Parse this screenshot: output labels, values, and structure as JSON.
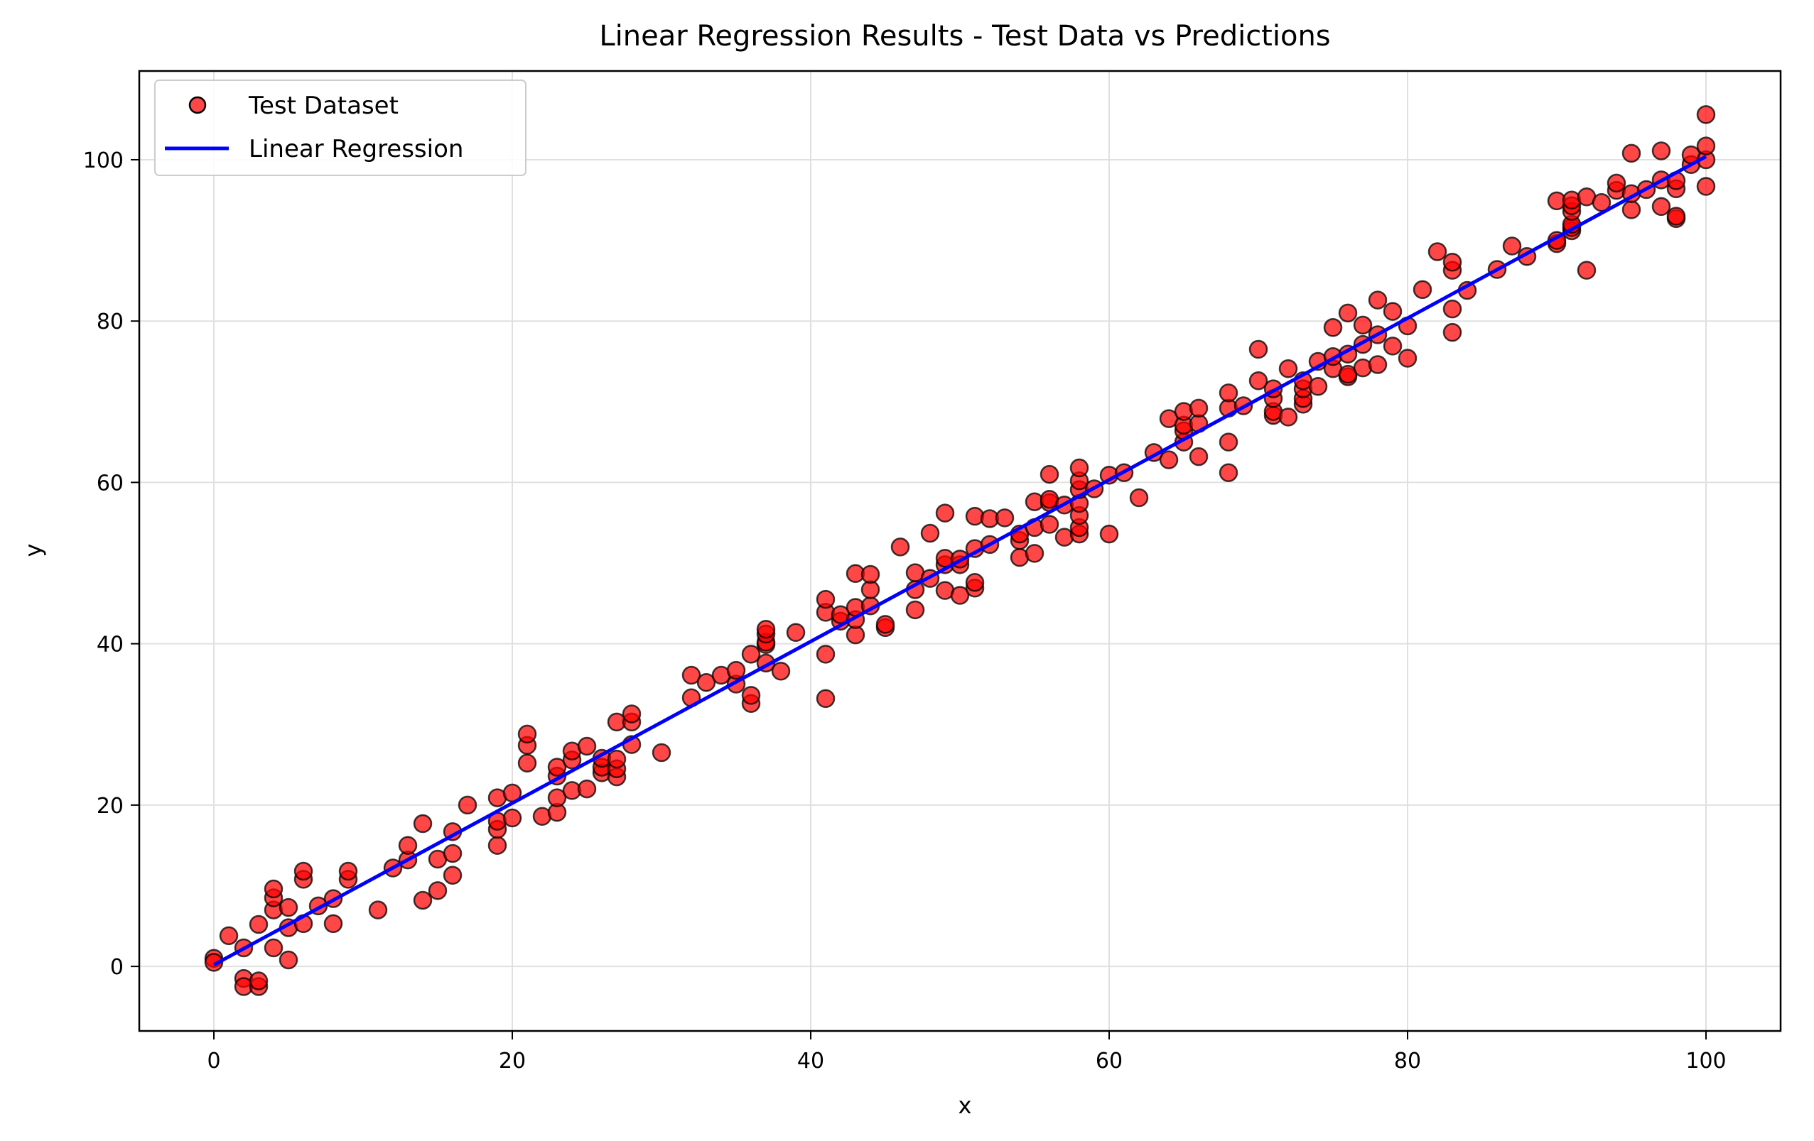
{
  "chart_data": {
    "type": "scatter",
    "title": "Linear Regression Results - Test Data vs Predictions",
    "xlabel": "x",
    "ylabel": "y",
    "xlim": [
      -5,
      105
    ],
    "ylim": [
      -8,
      111
    ],
    "xticks": [
      0,
      20,
      40,
      60,
      80,
      100
    ],
    "yticks": [
      0,
      20,
      40,
      60,
      80,
      100
    ],
    "grid": true,
    "legend_position": "upper-left",
    "colors": {
      "points_fill": "#ff0000",
      "points_edge": "#000000",
      "regression_line": "#0000ff",
      "grid": "#e0e0e0"
    },
    "series": [
      {
        "name": "Test Dataset",
        "kind": "scatter",
        "points": [
          [
            0,
            1.0
          ],
          [
            0,
            0.5
          ],
          [
            1,
            3.8
          ],
          [
            2,
            2.3
          ],
          [
            2,
            -1.5
          ],
          [
            2,
            -2.5
          ],
          [
            3,
            -2.5
          ],
          [
            3,
            -1.8
          ],
          [
            3,
            5.2
          ],
          [
            4,
            2.3
          ],
          [
            4,
            7.0
          ],
          [
            4,
            8.5
          ],
          [
            4,
            9.6
          ],
          [
            5,
            0.8
          ],
          [
            5,
            4.8
          ],
          [
            5,
            7.3
          ],
          [
            6,
            5.3
          ],
          [
            6,
            10.8
          ],
          [
            6,
            11.8
          ],
          [
            7,
            7.5
          ],
          [
            8,
            5.3
          ],
          [
            8,
            8.4
          ],
          [
            9,
            10.8
          ],
          [
            9,
            11.8
          ],
          [
            11,
            7.0
          ],
          [
            12,
            12.2
          ],
          [
            13,
            13.2
          ],
          [
            13,
            15.0
          ],
          [
            14,
            8.2
          ],
          [
            14,
            17.7
          ],
          [
            15,
            9.4
          ],
          [
            15,
            13.3
          ],
          [
            16,
            11.3
          ],
          [
            16,
            14.0
          ],
          [
            16,
            16.7
          ],
          [
            17,
            20.0
          ],
          [
            19,
            15.0
          ],
          [
            19,
            17.0
          ],
          [
            19,
            18.0
          ],
          [
            19,
            20.9
          ],
          [
            20,
            18.4
          ],
          [
            20,
            21.5
          ],
          [
            21,
            25.2
          ],
          [
            21,
            27.4
          ],
          [
            21,
            28.8
          ],
          [
            22,
            18.6
          ],
          [
            23,
            19.1
          ],
          [
            23,
            20.9
          ],
          [
            23,
            23.6
          ],
          [
            23,
            24.7
          ],
          [
            24,
            21.8
          ],
          [
            24,
            25.6
          ],
          [
            24,
            26.7
          ],
          [
            25,
            22.0
          ],
          [
            25,
            27.3
          ],
          [
            26,
            24.0
          ],
          [
            26,
            24.7
          ],
          [
            26,
            25.8
          ],
          [
            27,
            23.5
          ],
          [
            27,
            24.5
          ],
          [
            27,
            25.7
          ],
          [
            27,
            30.3
          ],
          [
            28,
            27.5
          ],
          [
            28,
            30.3
          ],
          [
            28,
            31.3
          ],
          [
            30,
            26.5
          ],
          [
            32,
            33.3
          ],
          [
            32,
            36.1
          ],
          [
            33,
            35.2
          ],
          [
            34,
            36.1
          ],
          [
            35,
            35.0
          ],
          [
            35,
            36.7
          ],
          [
            36,
            32.6
          ],
          [
            36,
            33.6
          ],
          [
            36,
            38.7
          ],
          [
            37,
            37.6
          ],
          [
            37,
            39.9
          ],
          [
            37,
            40.2
          ],
          [
            37,
            41.2
          ],
          [
            37,
            41.8
          ],
          [
            38,
            36.6
          ],
          [
            39,
            41.4
          ],
          [
            41,
            33.2
          ],
          [
            41,
            38.7
          ],
          [
            41,
            43.9
          ],
          [
            41,
            45.5
          ],
          [
            42,
            42.8
          ],
          [
            42,
            43.6
          ],
          [
            43,
            41.1
          ],
          [
            43,
            43.0
          ],
          [
            43,
            44.5
          ],
          [
            43,
            48.7
          ],
          [
            44,
            44.7
          ],
          [
            44,
            46.7
          ],
          [
            44,
            48.6
          ],
          [
            45,
            42.0
          ],
          [
            45,
            42.4
          ],
          [
            46,
            52.0
          ],
          [
            47,
            44.2
          ],
          [
            47,
            46.7
          ],
          [
            47,
            48.8
          ],
          [
            48,
            48.1
          ],
          [
            48,
            53.7
          ],
          [
            49,
            46.6
          ],
          [
            49,
            49.8
          ],
          [
            49,
            50.6
          ],
          [
            49,
            56.2
          ],
          [
            50,
            46.0
          ],
          [
            50,
            49.8
          ],
          [
            50,
            50.5
          ],
          [
            51,
            46.9
          ],
          [
            51,
            47.6
          ],
          [
            51,
            51.8
          ],
          [
            51,
            55.8
          ],
          [
            52,
            52.3
          ],
          [
            52,
            55.5
          ],
          [
            53,
            55.6
          ],
          [
            54,
            50.7
          ],
          [
            54,
            52.8
          ],
          [
            54,
            53.6
          ],
          [
            55,
            51.2
          ],
          [
            55,
            54.4
          ],
          [
            55,
            57.6
          ],
          [
            56,
            54.8
          ],
          [
            56,
            57.5
          ],
          [
            56,
            57.9
          ],
          [
            56,
            61.0
          ],
          [
            57,
            53.2
          ],
          [
            57,
            57.2
          ],
          [
            58,
            53.6
          ],
          [
            58,
            54.4
          ],
          [
            58,
            55.9
          ],
          [
            58,
            57.4
          ],
          [
            58,
            59.1
          ],
          [
            58,
            60.2
          ],
          [
            58,
            61.8
          ],
          [
            59,
            59.2
          ],
          [
            60,
            53.6
          ],
          [
            60,
            60.9
          ],
          [
            61,
            61.2
          ],
          [
            62,
            58.1
          ],
          [
            63,
            63.7
          ],
          [
            64,
            62.8
          ],
          [
            64,
            67.9
          ],
          [
            65,
            65.0
          ],
          [
            65,
            66.4
          ],
          [
            65,
            67.1
          ],
          [
            65,
            68.8
          ],
          [
            66,
            63.2
          ],
          [
            66,
            67.3
          ],
          [
            66,
            69.2
          ],
          [
            68,
            61.2
          ],
          [
            68,
            65.0
          ],
          [
            68,
            69.2
          ],
          [
            68,
            71.1
          ],
          [
            69,
            69.5
          ],
          [
            70,
            72.6
          ],
          [
            70,
            76.5
          ],
          [
            71,
            68.3
          ],
          [
            71,
            68.8
          ],
          [
            71,
            70.4
          ],
          [
            71,
            71.6
          ],
          [
            72,
            68.1
          ],
          [
            72,
            74.1
          ],
          [
            73,
            69.7
          ],
          [
            73,
            70.4
          ],
          [
            73,
            71.6
          ],
          [
            73,
            72.6
          ],
          [
            74,
            71.9
          ],
          [
            74,
            75.0
          ],
          [
            75,
            74.1
          ],
          [
            75,
            75.6
          ],
          [
            75,
            79.2
          ],
          [
            76,
            73.1
          ],
          [
            76,
            73.4
          ],
          [
            76,
            75.9
          ],
          [
            76,
            81.0
          ],
          [
            77,
            74.2
          ],
          [
            77,
            77.1
          ],
          [
            77,
            79.5
          ],
          [
            78,
            74.6
          ],
          [
            78,
            78.3
          ],
          [
            78,
            82.6
          ],
          [
            79,
            76.9
          ],
          [
            79,
            81.2
          ],
          [
            80,
            75.4
          ],
          [
            80,
            79.4
          ],
          [
            81,
            83.9
          ],
          [
            82,
            88.6
          ],
          [
            83,
            78.6
          ],
          [
            83,
            81.5
          ],
          [
            83,
            86.3
          ],
          [
            83,
            87.3
          ],
          [
            84,
            83.8
          ],
          [
            86,
            86.4
          ],
          [
            87,
            89.3
          ],
          [
            88,
            88.0
          ],
          [
            90,
            89.6
          ],
          [
            90,
            90.0
          ],
          [
            90,
            94.9
          ],
          [
            91,
            91.2
          ],
          [
            91,
            91.6
          ],
          [
            91,
            92.0
          ],
          [
            91,
            93.6
          ],
          [
            91,
            94.3
          ],
          [
            91,
            95.0
          ],
          [
            92,
            86.3
          ],
          [
            92,
            95.4
          ],
          [
            93,
            94.7
          ],
          [
            94,
            96.2
          ],
          [
            94,
            97.1
          ],
          [
            95,
            93.8
          ],
          [
            95,
            95.8
          ],
          [
            95,
            100.8
          ],
          [
            96,
            96.3
          ],
          [
            97,
            94.2
          ],
          [
            97,
            97.5
          ],
          [
            97,
            101.1
          ],
          [
            98,
            92.7
          ],
          [
            98,
            93.0
          ],
          [
            98,
            96.4
          ],
          [
            98,
            97.4
          ],
          [
            99,
            99.4
          ],
          [
            99,
            100.6
          ],
          [
            100,
            96.7
          ],
          [
            100,
            100.0
          ],
          [
            100,
            101.7
          ],
          [
            100,
            105.6
          ]
        ]
      },
      {
        "name": "Linear Regression",
        "kind": "line",
        "x": [
          0,
          100
        ],
        "y": [
          0.2,
          100.4
        ]
      }
    ]
  }
}
